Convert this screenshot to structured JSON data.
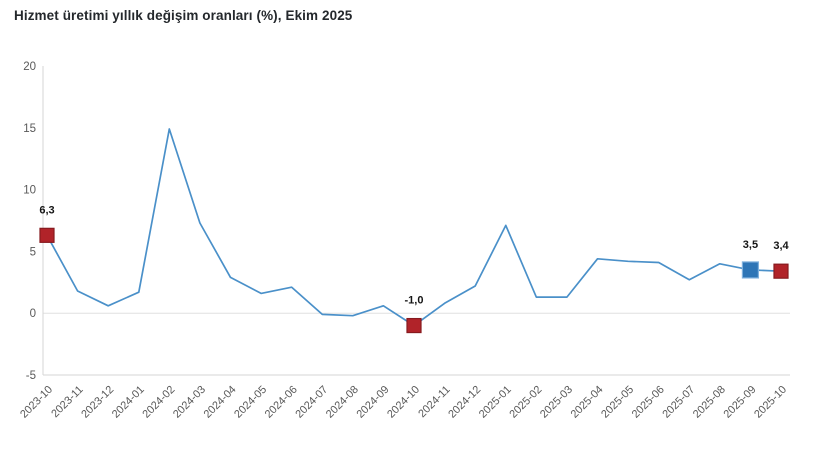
{
  "title": "Hizmet üretimi yıllık değişim oranları (%), Ekim 2025",
  "chart_data": {
    "type": "line",
    "title": "Hizmet üretimi yıllık değişim oranları (%), Ekim 2025",
    "categories": [
      "2023-10",
      "2023-11",
      "2023-12",
      "2024-01",
      "2024-02",
      "2024-03",
      "2024-04",
      "2024-05",
      "2024-06",
      "2024-07",
      "2024-08",
      "2024-09",
      "2024-10",
      "2024-11",
      "2024-12",
      "2025-01",
      "2025-02",
      "2025-03",
      "2025-04",
      "2025-05",
      "2025-06",
      "2025-07",
      "2025-08",
      "2025-09",
      "2025-10"
    ],
    "series": [
      {
        "name": "Hizmet üretimi yıllık değişim (%)",
        "values": [
          6.3,
          1.8,
          0.6,
          1.7,
          14.9,
          7.3,
          2.9,
          1.6,
          2.1,
          -0.1,
          -0.2,
          0.6,
          -1.0,
          0.8,
          2.2,
          7.1,
          1.3,
          1.3,
          4.4,
          4.2,
          4.1,
          2.7,
          4.0,
          3.5,
          3.4
        ]
      }
    ],
    "ylim": [
      -5,
      20
    ],
    "yticks": [
      20,
      15,
      10,
      5,
      0,
      -5
    ],
    "xlabel": "",
    "ylabel": "",
    "grid": "zero-line-only",
    "legend": "none",
    "annotations": [
      {
        "category": "2023-10",
        "value": 6.3,
        "label": "6,3",
        "marker": "red-square"
      },
      {
        "category": "2024-10",
        "value": -1.0,
        "label": "-1,0",
        "marker": "red-square"
      },
      {
        "category": "2025-09",
        "value": 3.5,
        "label": "3,5",
        "marker": "blue-square"
      },
      {
        "category": "2025-10",
        "value": 3.4,
        "label": "3,4",
        "marker": "red-square"
      }
    ],
    "colors": {
      "line": "#4a90c9",
      "red_marker_fill": "#b12329",
      "red_marker_border": "#871a1f",
      "blue_marker_fill": "#2e75b6",
      "blue_marker_border": "#7fb0dd",
      "axis_line": "#d6d6d6",
      "zero_line": "#e0e0e0",
      "tick_label": "#595959",
      "data_label": "#141414",
      "title": "#24282c"
    }
  }
}
